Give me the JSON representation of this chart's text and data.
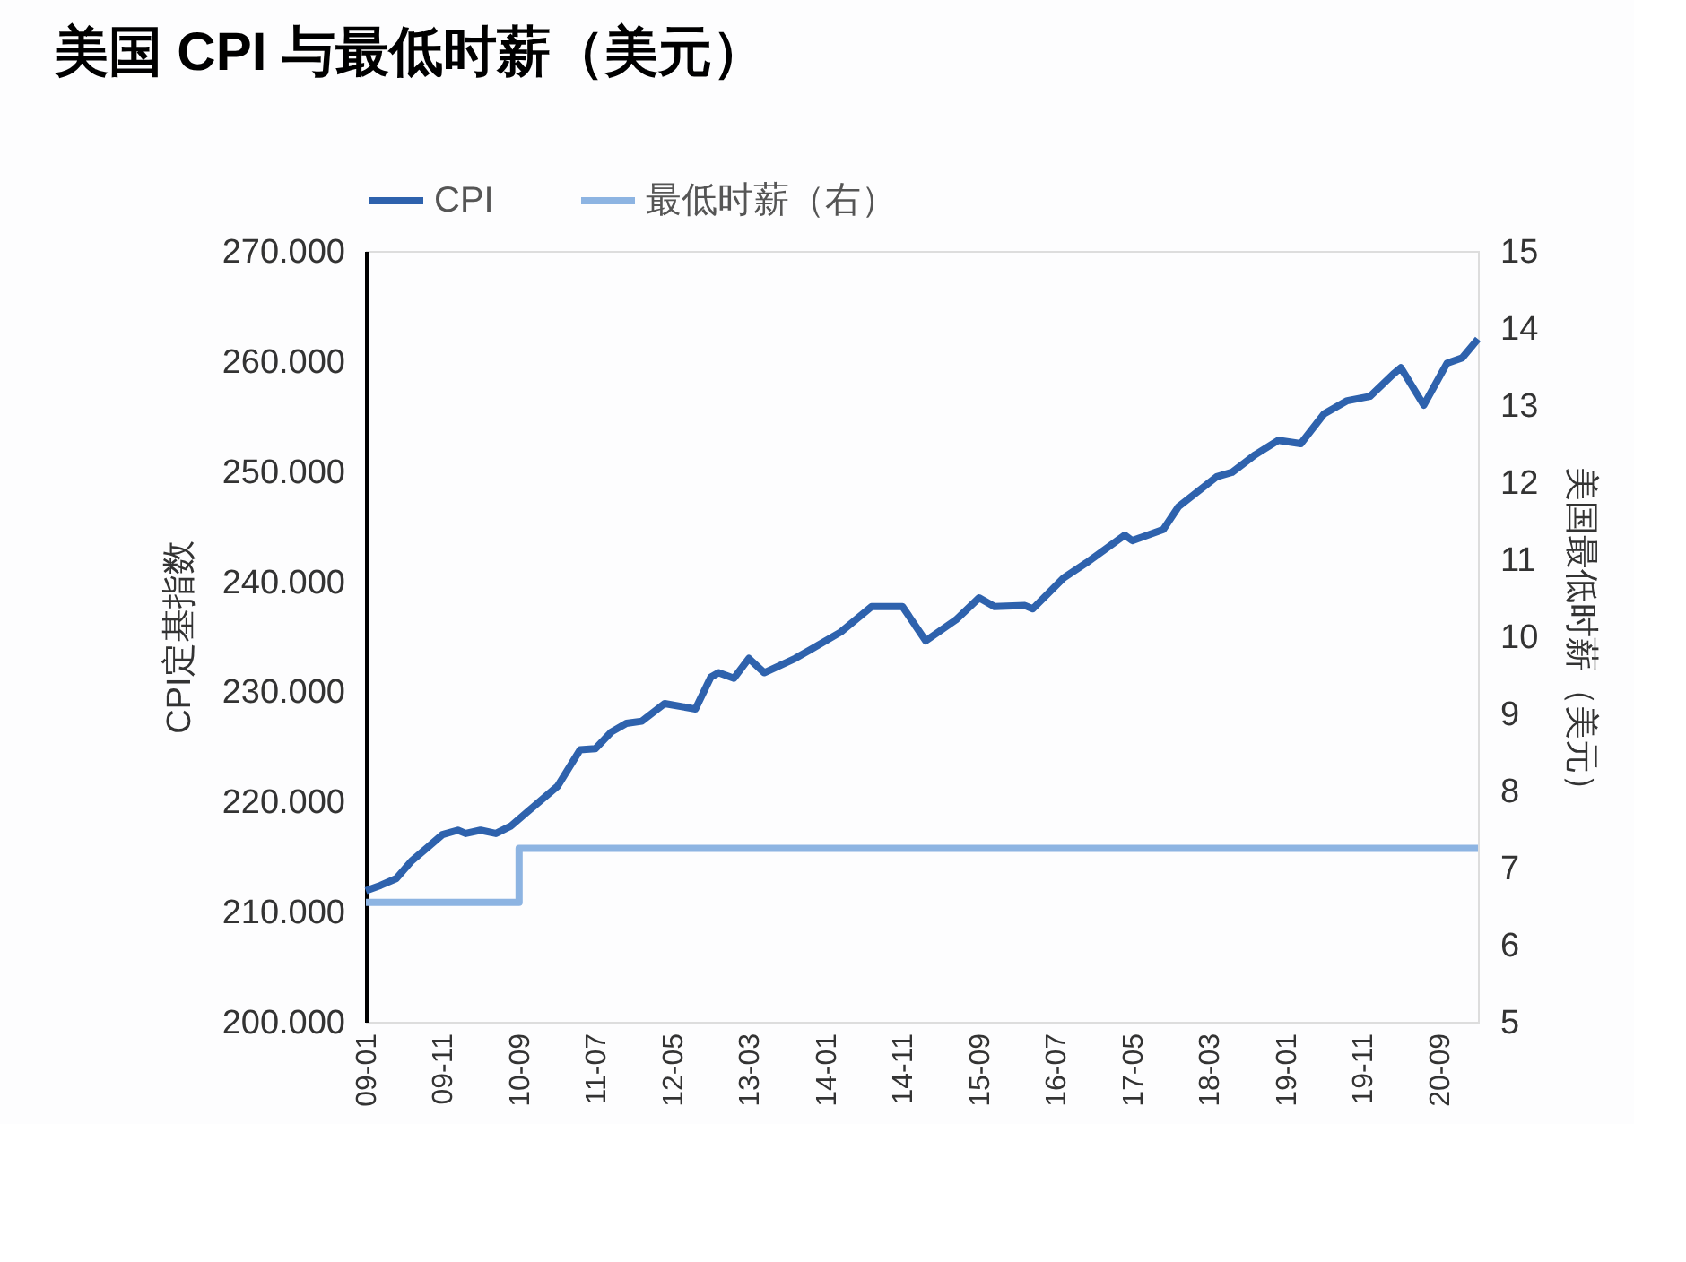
{
  "chart_data": {
    "type": "line",
    "title": "美国 CPI 与最低时薪（美元）",
    "ylabel": "CPI定基指数",
    "y2label": "美国最低时薪（美元）",
    "legend": "top",
    "grid": false,
    "marker": "none",
    "line_style": "solid",
    "xlim": [
      "2009-01",
      "2021-02"
    ],
    "xticks": [
      {
        "value": "2009-01",
        "label": "09-01"
      },
      {
        "value": "2009-11",
        "label": "09-11"
      },
      {
        "value": "2010-09",
        "label": "10-09"
      },
      {
        "value": "2011-07",
        "label": "11-07"
      },
      {
        "value": "2012-05",
        "label": "12-05"
      },
      {
        "value": "2013-03",
        "label": "13-03"
      },
      {
        "value": "2014-01",
        "label": "14-01"
      },
      {
        "value": "2014-11",
        "label": "14-11"
      },
      {
        "value": "2015-09",
        "label": "15-09"
      },
      {
        "value": "2016-07",
        "label": "16-07"
      },
      {
        "value": "2017-05",
        "label": "17-05"
      },
      {
        "value": "2018-03",
        "label": "18-03"
      },
      {
        "value": "2019-01",
        "label": "19-01"
      },
      {
        "value": "2019-11",
        "label": "19-11"
      },
      {
        "value": "2020-09",
        "label": "20-09"
      }
    ],
    "ylim": [
      200,
      270
    ],
    "yticks": [
      {
        "value": 200,
        "label": "200.000"
      },
      {
        "value": 210,
        "label": "210.000"
      },
      {
        "value": 220,
        "label": "220.000"
      },
      {
        "value": 230,
        "label": "230.000"
      },
      {
        "value": 240,
        "label": "240.000"
      },
      {
        "value": 250,
        "label": "250.000"
      },
      {
        "value": 260,
        "label": "260.000"
      },
      {
        "value": 270,
        "label": "270.000"
      }
    ],
    "y2lim": [
      5,
      15
    ],
    "y2ticks": [
      5,
      6,
      7,
      8,
      9,
      10,
      11,
      12,
      13,
      14,
      15
    ],
    "series": [
      {
        "name": "CPI",
        "color": "#2e62ad",
        "type": "line",
        "x": [
          "2009-01",
          "2009-03",
          "2009-05",
          "2009-07",
          "2009-09",
          "2009-11",
          "2010-01",
          "2010-02",
          "2010-04",
          "2010-06",
          "2010-08",
          "2010-10",
          "2011-02",
          "2011-05",
          "2011-07",
          "2011-09",
          "2011-11",
          "2012-01",
          "2012-04",
          "2012-08",
          "2012-10",
          "2012-11",
          "2013-01",
          "2013-03",
          "2013-05",
          "2013-09",
          "2013-11",
          "2014-03",
          "2014-07",
          "2014-11",
          "2015-02",
          "2015-06",
          "2015-09",
          "2015-11",
          "2016-03",
          "2016-04",
          "2016-08",
          "2016-11",
          "2017-04",
          "2017-05",
          "2017-09",
          "2017-11",
          "2018-04",
          "2018-06",
          "2018-09",
          "2018-12",
          "2019-03",
          "2019-06",
          "2019-09",
          "2019-12",
          "2020-03",
          "2020-04",
          "2020-07",
          "2020-10",
          "2020-12",
          "2021-02"
        ],
        "values": [
          211.9,
          212.4,
          213.0,
          214.6,
          215.8,
          217.0,
          217.4,
          217.1,
          217.4,
          217.1,
          217.8,
          219.0,
          221.4,
          224.7,
          224.8,
          226.3,
          227.1,
          227.3,
          228.9,
          228.4,
          231.3,
          231.7,
          231.2,
          233.0,
          231.7,
          233.0,
          233.8,
          235.4,
          237.7,
          237.7,
          234.6,
          236.5,
          238.5,
          237.7,
          237.8,
          237.5,
          240.3,
          241.7,
          244.2,
          243.7,
          244.7,
          246.8,
          249.5,
          249.9,
          251.5,
          252.8,
          252.5,
          255.2,
          256.4,
          256.8,
          258.8,
          259.4,
          256.0,
          259.8,
          260.3,
          262.0
        ]
      },
      {
        "name": "最低时薪（右）",
        "color": "#8db4e2",
        "type": "step",
        "axis": "y2",
        "x": [
          "2009-01",
          "2010-09",
          "2021-02"
        ],
        "values": [
          6.55,
          7.25,
          7.25
        ]
      }
    ]
  }
}
